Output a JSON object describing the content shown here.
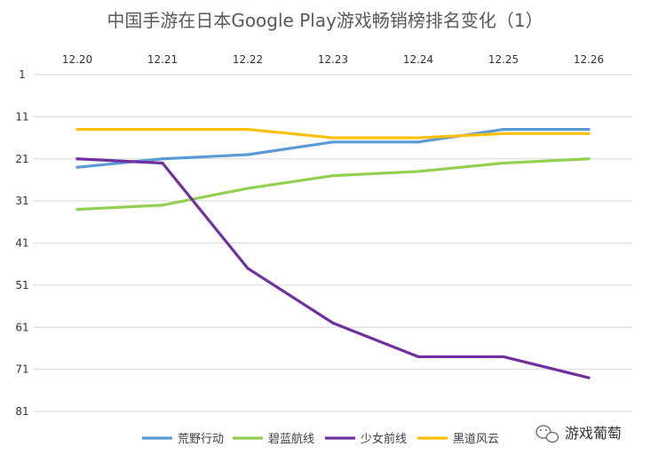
{
  "chart_data": {
    "type": "line",
    "title": "中国手游在日本Google Play游戏畅销榜排名变化（1）",
    "categories": [
      "12.20",
      "12.21",
      "12.22",
      "12.23",
      "12.24",
      "12.25",
      "12.26"
    ],
    "y_ticks": [
      "1",
      "11",
      "21",
      "31",
      "41",
      "51",
      "61",
      "71",
      "81"
    ],
    "ylim": [
      1,
      81
    ],
    "y_inverted": true,
    "x_axis_position": "top",
    "grid": true,
    "legend_position": "bottom",
    "series": [
      {
        "name": "荒野行动",
        "color": "#5B9BD5",
        "values": [
          23,
          21,
          20,
          17,
          17,
          14,
          14
        ]
      },
      {
        "name": "碧蓝航线",
        "color": "#92D050",
        "values": [
          33,
          32,
          28,
          25,
          24,
          22,
          21
        ]
      },
      {
        "name": "少女前线",
        "color": "#7030A0",
        "values": [
          21,
          22,
          47,
          60,
          68,
          68,
          73
        ]
      },
      {
        "name": "黑道风云",
        "color": "#FFC000",
        "values": [
          14,
          14,
          14,
          16,
          16,
          15,
          15
        ]
      }
    ]
  },
  "watermark": {
    "text": "游戏葡萄",
    "icon": "wechat-icon"
  }
}
